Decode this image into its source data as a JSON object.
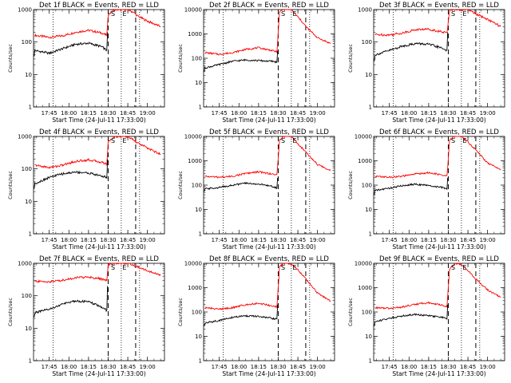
{
  "chart_data": [
    {
      "type": "line",
      "title": "Det 1f BLACK = Events, RED = LLD",
      "xlabel": "Start Time (24-Jul-11 17:33:00)",
      "ylabel": "Counts/sec",
      "x_ticks": [
        "17:45",
        "18:00",
        "18:15",
        "18:30",
        "18:45",
        "19:00"
      ],
      "y_ticks": [
        "1",
        "10",
        "100",
        "1000"
      ],
      "ylim": [
        1,
        1000
      ],
      "yscale": "log",
      "xlim": [
        "17:33",
        "19:13"
      ],
      "vlines_dotted": [
        "17:48",
        "18:40",
        "18:54"
      ],
      "vlines_dashed": [
        "18:30",
        "18:51"
      ],
      "flags": [
        "S",
        "E"
      ],
      "series": [
        {
          "name": "RED",
          "color": "#ff0000",
          "x": [
            "17:34",
            "17:45",
            "17:55",
            "18:05",
            "18:15",
            "18:25",
            "18:29",
            "18:30",
            "18:35",
            "18:45",
            "18:50",
            "18:52",
            "19:00",
            "19:10"
          ],
          "y": [
            160,
            140,
            155,
            200,
            230,
            190,
            160,
            700,
            1000,
            1000,
            800,
            650,
            440,
            300
          ]
        },
        {
          "name": "BLACK",
          "color": "#000000",
          "x": [
            "17:33.5",
            "17:34",
            "17:45",
            "17:55",
            "18:05",
            "18:15",
            "18:25",
            "18:29",
            "18:29.5"
          ],
          "y": [
            38,
            55,
            45,
            62,
            85,
            92,
            72,
            55,
            200
          ]
        }
      ]
    },
    {
      "type": "line",
      "title": "Det 2f BLACK = Events, RED = LLD",
      "xlabel": "Start Time (24-Jul-11 17:33:00)",
      "ylabel": "Counts/sec",
      "x_ticks": [
        "17:45",
        "18:00",
        "18:15",
        "18:30",
        "18:45",
        "19:00"
      ],
      "y_ticks": [
        "1",
        "10",
        "100",
        "1000",
        "10000"
      ],
      "ylim": [
        1,
        10000
      ],
      "yscale": "log",
      "xlim": [
        "17:33",
        "19:13"
      ],
      "vlines_dotted": [
        "17:48",
        "18:40",
        "18:54"
      ],
      "vlines_dashed": [
        "18:30",
        "18:51"
      ],
      "flags": [
        "S",
        "E"
      ],
      "series": [
        {
          "name": "RED",
          "color": "#ff0000",
          "x": [
            "17:34",
            "17:45",
            "17:55",
            "18:05",
            "18:15",
            "18:25",
            "18:29",
            "18:31",
            "18:35",
            "18:40",
            "18:45",
            "18:52",
            "19:00",
            "19:10"
          ],
          "y": [
            170,
            145,
            170,
            230,
            270,
            210,
            180,
            8000,
            11000,
            10000,
            5000,
            1800,
            700,
            400
          ]
        },
        {
          "name": "BLACK",
          "color": "#000000",
          "x": [
            "17:33.5",
            "17:34",
            "17:45",
            "17:55",
            "18:05",
            "18:15",
            "18:25",
            "18:29",
            "18:29.5"
          ],
          "y": [
            28,
            40,
            55,
            75,
            85,
            80,
            75,
            70,
            200
          ]
        }
      ]
    },
    {
      "type": "line",
      "title": "Det 3f BLACK = Events, RED = LLD",
      "xlabel": "Start Time (24-Jul-11 17:33:00)",
      "ylabel": "Counts/sec",
      "x_ticks": [
        "17:45",
        "18:00",
        "18:15",
        "18:30",
        "18:45",
        "19:00"
      ],
      "y_ticks": [
        "1",
        "10",
        "100",
        "1000"
      ],
      "ylim": [
        1,
        1000
      ],
      "yscale": "log",
      "xlim": [
        "17:33",
        "19:13"
      ],
      "vlines_dotted": [
        "17:48",
        "18:40",
        "18:54"
      ],
      "vlines_dashed": [
        "18:30",
        "18:51"
      ],
      "flags": [
        "S",
        "E"
      ],
      "series": [
        {
          "name": "RED",
          "color": "#ff0000",
          "x": [
            "17:34",
            "17:45",
            "17:55",
            "18:05",
            "18:15",
            "18:25",
            "18:29",
            "18:31",
            "18:35",
            "18:45",
            "18:52",
            "19:00",
            "19:10"
          ],
          "y": [
            170,
            165,
            190,
            240,
            250,
            205,
            190,
            1000,
            1000,
            1000,
            700,
            500,
            300
          ]
        },
        {
          "name": "BLACK",
          "color": "#000000",
          "x": [
            "17:33.5",
            "17:34",
            "17:45",
            "17:55",
            "18:05",
            "18:15",
            "18:25",
            "18:29",
            "18:29.5"
          ],
          "y": [
            25,
            40,
            55,
            75,
            90,
            85,
            65,
            55,
            200
          ]
        }
      ]
    },
    {
      "type": "line",
      "title": "Det 4f BLACK = Events, RED = LLD",
      "xlabel": "Start Time (24-Jul-11 17:33:00)",
      "ylabel": "Counts/sec",
      "x_ticks": [
        "17:45",
        "18:00",
        "18:15",
        "18:30",
        "18:45",
        "19:00"
      ],
      "y_ticks": [
        "1",
        "10",
        "100",
        "1000"
      ],
      "ylim": [
        1,
        1000
      ],
      "yscale": "log",
      "xlim": [
        "17:33",
        "19:13"
      ],
      "vlines_dotted": [
        "17:48",
        "18:40",
        "18:54"
      ],
      "vlines_dashed": [
        "18:30",
        "18:51"
      ],
      "flags": [
        "S",
        "E"
      ],
      "series": [
        {
          "name": "RED",
          "color": "#ff0000",
          "x": [
            "17:34",
            "17:45",
            "17:55",
            "18:05",
            "18:15",
            "18:25",
            "18:29",
            "18:30",
            "18:35",
            "18:45",
            "18:52",
            "19:00",
            "19:10"
          ],
          "y": [
            130,
            110,
            130,
            170,
            190,
            160,
            140,
            700,
            1000,
            1000,
            650,
            440,
            280
          ]
        },
        {
          "name": "BLACK",
          "color": "#000000",
          "x": [
            "17:33.5",
            "17:34",
            "17:45",
            "17:55",
            "18:05",
            "18:15",
            "18:25",
            "18:29",
            "18:29.5"
          ],
          "y": [
            25,
            35,
            55,
            70,
            80,
            75,
            60,
            55,
            200
          ]
        }
      ]
    },
    {
      "type": "line",
      "title": "Det 5f BLACK = Events, RED = LLD",
      "xlabel": "Start Time (24-Jul-11 17:33:00)",
      "ylabel": "Counts/sec",
      "x_ticks": [
        "17:45",
        "18:00",
        "18:15",
        "18:30",
        "18:45",
        "19:00"
      ],
      "y_ticks": [
        "1",
        "10",
        "100",
        "1000",
        "10000"
      ],
      "ylim": [
        1,
        10000
      ],
      "yscale": "log",
      "xlim": [
        "17:33",
        "19:13"
      ],
      "vlines_dotted": [
        "17:48",
        "18:40",
        "18:54"
      ],
      "vlines_dashed": [
        "18:30",
        "18:51"
      ],
      "flags": [
        "S",
        "E"
      ],
      "series": [
        {
          "name": "RED",
          "color": "#ff0000",
          "x": [
            "17:34",
            "17:45",
            "17:55",
            "18:05",
            "18:15",
            "18:25",
            "18:29",
            "18:31",
            "18:35",
            "18:40",
            "18:45",
            "18:52",
            "19:00",
            "19:10"
          ],
          "y": [
            230,
            210,
            230,
            300,
            350,
            290,
            260,
            7000,
            12000,
            10000,
            5000,
            2000,
            700,
            400
          ]
        },
        {
          "name": "BLACK",
          "color": "#000000",
          "x": [
            "17:33.5",
            "17:34",
            "17:45",
            "17:55",
            "18:05",
            "18:15",
            "18:25",
            "18:29",
            "18:29.5"
          ],
          "y": [
            50,
            70,
            80,
            100,
            120,
            110,
            90,
            75,
            200
          ]
        }
      ]
    },
    {
      "type": "line",
      "title": "Det 6f BLACK = Events, RED = LLD",
      "xlabel": "Start Time (24-Jul-11 17:33:00)",
      "ylabel": "Counts/sec",
      "x_ticks": [
        "17:45",
        "18:00",
        "18:15",
        "18:30",
        "18:45",
        "19:00"
      ],
      "y_ticks": [
        "1",
        "10",
        "100",
        "1000",
        "10000"
      ],
      "ylim": [
        1,
        10000
      ],
      "yscale": "log",
      "xlim": [
        "17:33",
        "19:13"
      ],
      "vlines_dotted": [
        "17:48",
        "18:40",
        "18:54"
      ],
      "vlines_dashed": [
        "18:30",
        "18:51"
      ],
      "flags": [
        "S",
        "E"
      ],
      "series": [
        {
          "name": "RED",
          "color": "#ff0000",
          "x": [
            "17:34",
            "17:45",
            "17:55",
            "18:05",
            "18:15",
            "18:25",
            "18:29",
            "18:31",
            "18:35",
            "18:40",
            "18:45",
            "18:52",
            "19:00",
            "19:10"
          ],
          "y": [
            230,
            210,
            230,
            290,
            320,
            260,
            230,
            7000,
            11000,
            10000,
            6000,
            2500,
            800,
            450
          ]
        },
        {
          "name": "BLACK",
          "color": "#000000",
          "x": [
            "17:33.5",
            "17:34",
            "17:45",
            "17:55",
            "18:05",
            "18:15",
            "18:25",
            "18:29",
            "18:29.5"
          ],
          "y": [
            40,
            60,
            75,
            95,
            110,
            95,
            80,
            70,
            200
          ]
        }
      ]
    },
    {
      "type": "line",
      "title": "Det 7f BLACK = Events, RED = LLD",
      "xlabel": "Start Time (24-Jul-11 17:33:00)",
      "ylabel": "Counts/sec",
      "x_ticks": [
        "17:45",
        "18:00",
        "18:15",
        "18:30",
        "18:45",
        "19:00"
      ],
      "y_ticks": [
        "1",
        "10",
        "100",
        "1000"
      ],
      "ylim": [
        1,
        1000
      ],
      "yscale": "log",
      "xlim": [
        "17:33",
        "19:13"
      ],
      "vlines_dotted": [
        "17:48",
        "18:40",
        "18:54"
      ],
      "vlines_dashed": [
        "18:30",
        "18:51"
      ],
      "flags": [
        "S",
        "E"
      ],
      "series": [
        {
          "name": "RED",
          "color": "#ff0000",
          "x": [
            "17:34",
            "17:45",
            "17:55",
            "18:05",
            "18:15",
            "18:25",
            "18:29",
            "18:30",
            "18:35",
            "18:45",
            "18:52",
            "19:00",
            "19:10"
          ],
          "y": [
            280,
            270,
            300,
            360,
            380,
            330,
            290,
            900,
            1000,
            1000,
            800,
            600,
            420
          ]
        },
        {
          "name": "BLACK",
          "color": "#000000",
          "x": [
            "17:33.5",
            "17:34",
            "17:45",
            "17:55",
            "18:05",
            "18:15",
            "18:25",
            "18:29",
            "18:29.5"
          ],
          "y": [
            22,
            30,
            38,
            55,
            70,
            65,
            45,
            35,
            200
          ]
        }
      ]
    },
    {
      "type": "line",
      "title": "Det 8f BLACK = Events, RED = LLD",
      "xlabel": "Start Time (24-Jul-11 17:33:00)",
      "ylabel": "Counts/sec",
      "x_ticks": [
        "17:45",
        "18:00",
        "18:15",
        "18:30",
        "18:45",
        "19:00"
      ],
      "y_ticks": [
        "1",
        "10",
        "100",
        "1000",
        "10000"
      ],
      "ylim": [
        1,
        10000
      ],
      "yscale": "log",
      "xlim": [
        "17:33",
        "19:13"
      ],
      "vlines_dotted": [
        "17:48",
        "18:40",
        "18:54"
      ],
      "vlines_dashed": [
        "18:30",
        "18:51"
      ],
      "flags": [
        "S",
        "E"
      ],
      "series": [
        {
          "name": "RED",
          "color": "#ff0000",
          "x": [
            "17:34",
            "17:45",
            "17:55",
            "18:05",
            "18:15",
            "18:25",
            "18:29",
            "18:31",
            "18:35",
            "18:40",
            "18:45",
            "18:52",
            "19:00",
            "19:10"
          ],
          "y": [
            150,
            130,
            150,
            200,
            230,
            180,
            160,
            7000,
            11000,
            9000,
            5500,
            2000,
            600,
            280
          ]
        },
        {
          "name": "BLACK",
          "color": "#000000",
          "x": [
            "17:33.5",
            "17:34",
            "17:45",
            "17:55",
            "18:05",
            "18:15",
            "18:25",
            "18:29",
            "18:29.5"
          ],
          "y": [
            25,
            35,
            45,
            60,
            70,
            65,
            55,
            50,
            200
          ]
        }
      ]
    },
    {
      "type": "line",
      "title": "Det 9f BLACK = Events, RED = LLD",
      "xlabel": "Start Time (24-Jul-11 17:33:00)",
      "ylabel": "Counts/sec",
      "x_ticks": [
        "17:45",
        "18:00",
        "18:15",
        "18:30",
        "18:45",
        "19:00"
      ],
      "y_ticks": [
        "1",
        "10",
        "100",
        "1000",
        "10000"
      ],
      "ylim": [
        1,
        10000
      ],
      "yscale": "log",
      "xlim": [
        "17:33",
        "19:13"
      ],
      "vlines_dotted": [
        "17:48",
        "18:40",
        "18:54"
      ],
      "vlines_dashed": [
        "18:30",
        "18:51"
      ],
      "flags": [
        "S",
        "E"
      ],
      "series": [
        {
          "name": "RED",
          "color": "#ff0000",
          "x": [
            "17:34",
            "17:45",
            "17:55",
            "18:05",
            "18:15",
            "18:25",
            "18:29",
            "18:31",
            "18:35",
            "18:40",
            "18:45",
            "18:52",
            "19:00",
            "19:10"
          ],
          "y": [
            150,
            140,
            160,
            210,
            240,
            190,
            170,
            6000,
            10000,
            9000,
            5000,
            2000,
            800,
            400
          ]
        },
        {
          "name": "BLACK",
          "color": "#000000",
          "x": [
            "17:33.5",
            "17:34",
            "17:45",
            "17:55",
            "18:05",
            "18:15",
            "18:25",
            "18:29",
            "18:29.5"
          ],
          "y": [
            25,
            40,
            55,
            70,
            80,
            70,
            60,
            55,
            200
          ]
        }
      ]
    }
  ]
}
